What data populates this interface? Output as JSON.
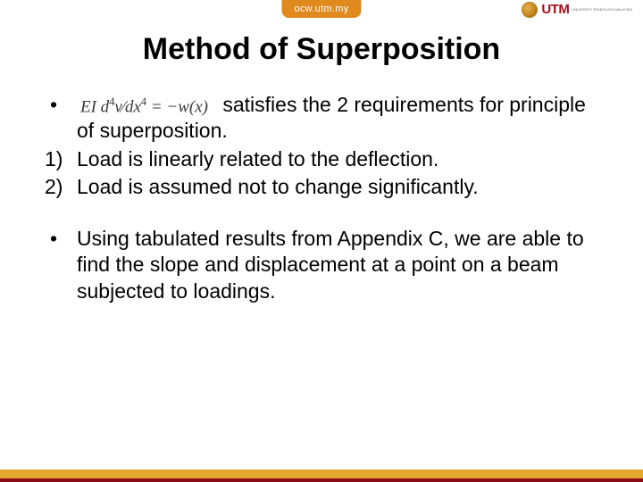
{
  "header": {
    "tab": "ocw.utm.my",
    "brand_main": "UTM",
    "brand_sub": "UNIVERSITI TEKNOLOGI MALAYSIA"
  },
  "title": "Method of Superposition",
  "equation": "EI d⁴v⁄dx⁴ = −w(x)",
  "bullets": {
    "b1_tail": "satisfies the 2 requirements for principle of superposition.",
    "n1": "Load is linearly related to the deflection.",
    "n2": "Load is assumed not to change significantly.",
    "b2": "Using tabulated results from Appendix C, we are able to find the slope and displacement at a point on a beam subjected to loadings."
  },
  "colors": {
    "accent_orange": "#e4a82e",
    "accent_tab": "#e08a1e",
    "accent_red": "#8a0d17",
    "text": "#000000",
    "background": "#ffffff"
  }
}
